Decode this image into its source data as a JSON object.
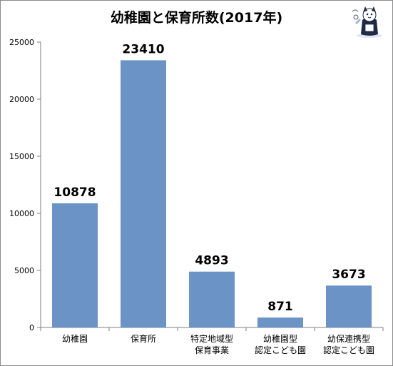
{
  "chart_data": {
    "type": "bar",
    "title": "幼稚園と保育所数(2017年)",
    "categories": [
      [
        "幼稚園"
      ],
      [
        "保育所"
      ],
      [
        "特定地域型",
        "保育事業"
      ],
      [
        "幼稚園型",
        "認定こども園"
      ],
      [
        "幼保連携型",
        "認定こども園"
      ]
    ],
    "values": [
      10878,
      23410,
      4893,
      871,
      3673
    ],
    "data_labels": [
      "10878",
      "23410",
      "4893",
      "871",
      "3673"
    ],
    "ylim": [
      0,
      25000
    ],
    "yticks": [
      0,
      5000,
      10000,
      15000,
      20000,
      25000
    ],
    "ytick_labels": [
      "0",
      "5000",
      "10000",
      "15000",
      "20000",
      "25000"
    ],
    "xlabel": "",
    "ylabel": "",
    "grid": false,
    "legend": "none",
    "bar_color": "#6b93c6",
    "axis_color": "#7f7f7f"
  }
}
